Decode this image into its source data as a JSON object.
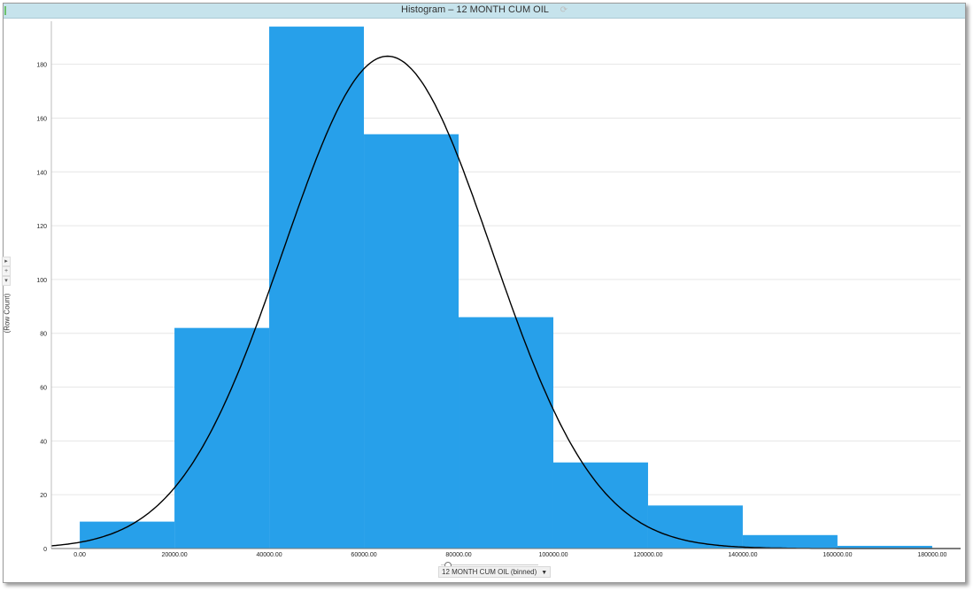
{
  "window": {
    "title": "Histogram – 12 MONTH CUM OIL",
    "refresh_icon": "refresh-icon"
  },
  "axis_controls": {
    "y_selector_label": "(Row Count)",
    "x_selector_label": "12 MONTH CUM OIL (binned)",
    "buttons": [
      "▸",
      "+",
      "▾"
    ]
  },
  "chart_data": {
    "type": "bar",
    "title": "",
    "xlabel": "12 MONTH CUM OIL (binned)",
    "ylabel": "(Row Count)",
    "bin_edges": [
      0,
      20000,
      40000,
      60000,
      80000,
      100000,
      120000,
      140000,
      160000,
      180000
    ],
    "values": [
      10,
      82,
      194,
      154,
      86,
      32,
      16,
      5,
      1
    ],
    "xlim": [
      -6000,
      186000
    ],
    "ylim": [
      0,
      196
    ],
    "x_ticks": [
      "0.00",
      "20000.00",
      "40000.00",
      "60000.00",
      "80000.00",
      "100000.00",
      "120000.00",
      "140000.00",
      "160000.00",
      "180000.00"
    ],
    "x_tick_values": [
      0,
      20000,
      40000,
      60000,
      80000,
      100000,
      120000,
      140000,
      160000,
      180000
    ],
    "y_ticks": [
      0,
      20,
      40,
      60,
      80,
      100,
      120,
      140,
      160,
      180
    ],
    "grid": true,
    "bar_color": "#27a0ea",
    "curve": {
      "type": "normal-fit",
      "mean": 65000,
      "std": 22000,
      "peak": 183,
      "color": "#000000"
    }
  }
}
